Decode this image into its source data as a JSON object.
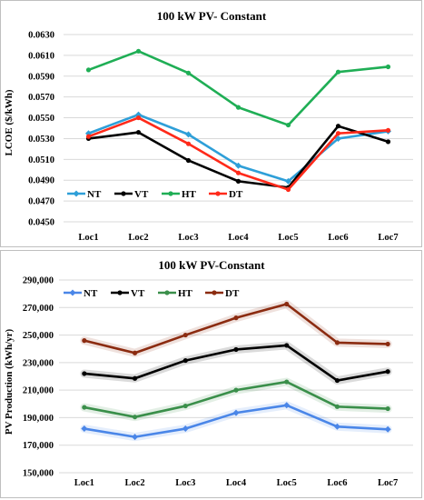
{
  "chart_data": [
    {
      "type": "line",
      "title": "100 kW PV- Constant",
      "xlabel": "",
      "ylabel": "LCOE ($/kWh)",
      "categories": [
        "Loc1",
        "Loc2",
        "Loc3",
        "Loc4",
        "Loc5",
        "Loc6",
        "Loc7"
      ],
      "ylim": [
        0.045,
        0.063
      ],
      "yticks": [
        "0.0450",
        "0.0470",
        "0.0490",
        "0.0510",
        "0.0530",
        "0.0550",
        "0.0570",
        "0.0590",
        "0.0610",
        "0.0630"
      ],
      "grid": true,
      "legend_position": "bottom-left",
      "series": [
        {
          "name": "NT",
          "color": "#2e9fd8",
          "marker": "diamond",
          "values": [
            0.0535,
            0.0553,
            0.0534,
            0.0504,
            0.0489,
            0.053,
            0.0537
          ]
        },
        {
          "name": "VT",
          "color": "#000000",
          "marker": "circle",
          "values": [
            0.053,
            0.0536,
            0.0509,
            0.0489,
            0.0483,
            0.0542,
            0.0527
          ]
        },
        {
          "name": "HT",
          "color": "#1fae55",
          "marker": "circle",
          "values": [
            0.0596,
            0.0614,
            0.0593,
            0.056,
            0.0543,
            0.0594,
            0.0599
          ]
        },
        {
          "name": "DT",
          "color": "#ff2a1a",
          "marker": "circle",
          "values": [
            0.0532,
            0.055,
            0.0525,
            0.0497,
            0.0481,
            0.0535,
            0.0538
          ]
        }
      ]
    },
    {
      "type": "line",
      "title": "100 kW PV-Constant",
      "xlabel": "",
      "ylabel": "PV Production (kWh/yr)",
      "categories": [
        "Loc1",
        "Loc2",
        "Loc3",
        "Loc4",
        "Loc5",
        "Loc6",
        "Loc7"
      ],
      "ylim": [
        150000,
        290000
      ],
      "yticks": [
        "150,000",
        "170,000",
        "190,000",
        "210,000",
        "230,000",
        "250,000",
        "270,000",
        "290,000"
      ],
      "grid": true,
      "legend_position": "top-left",
      "series": [
        {
          "name": "NT",
          "color": "#4a86e8",
          "marker": "diamond",
          "values": [
            182000,
            176000,
            182000,
            193500,
            199000,
            183500,
            181500
          ]
        },
        {
          "name": "VT",
          "color": "#000000",
          "marker": "circle",
          "values": [
            222000,
            218500,
            231500,
            239500,
            242500,
            217000,
            223500
          ]
        },
        {
          "name": "HT",
          "color": "#3a8f4a",
          "marker": "circle",
          "values": [
            197500,
            190500,
            198500,
            210000,
            216000,
            198000,
            196500
          ]
        },
        {
          "name": "DT",
          "color": "#8b2b10",
          "marker": "circle",
          "values": [
            246000,
            237000,
            250000,
            262500,
            272500,
            244500,
            243500
          ]
        }
      ]
    }
  ]
}
